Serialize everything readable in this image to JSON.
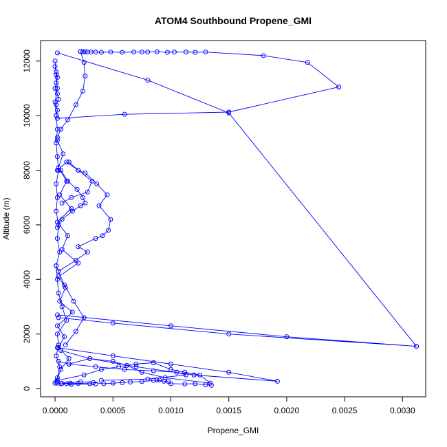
{
  "chart_data": {
    "type": "line",
    "title": "ATOM4 Southbound Propene_GMI",
    "xlabel": "Propene_GMI",
    "ylabel": "Altitude (m)",
    "xlim": [
      -0.000125,
      0.0032
    ],
    "ylim": [
      -300,
      12750
    ],
    "x_ticks": [
      0,
      0.0005,
      0.001,
      0.0015,
      0.002,
      0.0025,
      0.003
    ],
    "x_tick_labels": [
      "0.0000",
      "0.0005",
      "0.0010",
      "0.0015",
      "0.0020",
      "0.0025",
      "0.0030"
    ],
    "y_ticks": [
      0,
      2000,
      4000,
      6000,
      8000,
      10000,
      12000
    ],
    "y_tick_labels": [
      "0",
      "2000",
      "4000",
      "6000",
      "8000",
      "10000",
      "12000"
    ],
    "marker": "open-circle",
    "grid": false,
    "legend": "none",
    "color": "#0000ff",
    "series": [
      {
        "x": [
          0.0,
          2e-05,
          4e-05,
          1e-05,
          3e-05,
          2e-05,
          0.0001,
          6e-05,
          3e-05,
          2e-05,
          1e-05,
          4e-05,
          2e-05,
          3e-05,
          1e-05,
          2e-05,
          1e-05,
          3e-05,
          2e-05,
          1e-05,
          2e-05,
          1e-05,
          0.0,
          2e-05,
          1e-05,
          0.0
        ],
        "y": [
          200,
          400,
          800,
          1200,
          1600,
          2000,
          2500,
          3000,
          3500,
          4000,
          4500,
          5000,
          5500,
          6000,
          6500,
          7000,
          7500,
          8000,
          8500,
          9000,
          9500,
          10000,
          10500,
          11000,
          11500,
          12000
        ]
      },
      {
        "x": [
          1e-05,
          5e-05,
          0.00012,
          3e-05,
          8e-05,
          2e-05,
          0.00015,
          4e-05,
          9e-05,
          3e-05,
          0.0002,
          6e-05,
          0.00011,
          2e-05,
          0.00014,
          4e-05,
          0.0001,
          3e-05,
          7e-05,
          2e-05
        ],
        "y": [
          250,
          700,
          1100,
          1500,
          1900,
          2300,
          2800,
          3200,
          3700,
          4100,
          4600,
          5100,
          5600,
          6100,
          6600,
          7100,
          7600,
          8100,
          8600,
          9100
        ]
      },
      {
        "x": [
          3e-05,
          0.00018,
          0.00028,
          0.0002,
          0.00035,
          0.00041,
          0.00046,
          0.00048,
          0.00038,
          0.00045,
          0.00036,
          0.00026,
          0.0002,
          0.00012
        ],
        "y": [
          4300,
          4700,
          5000,
          5200,
          5500,
          5600,
          5800,
          6200,
          6700,
          7100,
          7500,
          7900,
          8000,
          8300
        ]
      },
      {
        "x": [
          2e-05,
          6e-05,
          0.00015,
          0.00022,
          0.00026,
          0.00024,
          0.00019,
          0.00011,
          5e-05
        ],
        "y": [
          5900,
          6200,
          6500,
          6700,
          6800,
          7000,
          7300,
          7600,
          8000
        ]
      },
      {
        "x": [
          2e-05,
          0.0001,
          0.0002,
          0.00032,
          0.00028,
          0.00014,
          6e-05
        ],
        "y": [
          8000,
          8300,
          8000,
          7600,
          7200,
          7000,
          6800
        ]
      },
      {
        "x": [
          1e-05,
          8e-05,
          0.00016,
          0.00025,
          0.00018,
          9e-05
        ],
        "y": [
          4500,
          3800,
          3200,
          2600,
          2100,
          1600
        ]
      },
      {
        "x": [
          2e-05,
          5e-05,
          0.0001,
          0.00013,
          0.0002,
          0.0003,
          0.00035,
          0.00014,
          6e-05,
          0.00022,
          0.00033,
          0.00042,
          0.0005,
          0.00058,
          0.00065,
          0.00075,
          0.00085,
          0.0009,
          0.00088,
          0.00094,
          0.00098,
          0.001,
          0.00112,
          0.00121,
          0.0013,
          0.00135
        ],
        "y": [
          200,
          180,
          180,
          200,
          190,
          180,
          170,
          160,
          190,
          250,
          220,
          180,
          200,
          220,
          240,
          260,
          300,
          320,
          320,
          270,
          260,
          180,
          170,
          180,
          140,
          120
        ]
      },
      {
        "x": [
          2e-05,
          0.00025,
          0.0004,
          0.00055,
          0.0007,
          0.00085,
          0.001,
          0.00112,
          0.00125,
          0.00134,
          0.00095,
          0.00075,
          0.00062,
          0.0005,
          0.0003,
          0.00012
        ],
        "y": [
          300,
          500,
          700,
          800,
          900,
          950,
          700,
          600,
          500,
          200,
          400,
          600,
          850,
          1000,
          1100,
          900
        ]
      },
      {
        "x": [
          3e-05,
          0.00012,
          0.00035,
          0.0006,
          0.00085,
          0.00105,
          0.00113,
          0.0008,
          0.0004
        ],
        "y": [
          1000,
          900,
          800,
          700,
          650,
          600,
          500,
          350,
          300
        ]
      },
      {
        "x": [
          2e-05,
          0.0005,
          0.001,
          0.0015,
          0.00192,
          0.0012,
          0.0007,
          0.0003,
          5e-05
        ],
        "y": [
          1500,
          1200,
          900,
          600,
          270,
          500,
          800,
          1100,
          1400
        ]
      },
      {
        "x": [
          2e-05,
          0.001,
          0.002,
          0.00312,
          0.0015,
          0.0005,
          3e-05
        ],
        "y": [
          2700,
          2300,
          1900,
          1550,
          2000,
          2400,
          2600
        ]
      },
      {
        "x": [
          2e-05,
          0.0008,
          0.0015,
          0.00312
        ],
        "y": [
          12300,
          11300,
          10100,
          1550
        ]
      },
      {
        "x": [
          2e-05,
          0.0006,
          0.0015,
          0.00245
        ],
        "y": [
          9900,
          10050,
          10130,
          11050
        ]
      },
      {
        "x": [
          0.00245,
          0.00218,
          0.0018,
          0.0013,
          0.00121,
          0.00113,
          0.00103,
          0.00097,
          0.00088,
          0.0008,
          0.00075,
          0.00068,
          0.00058,
          0.00048,
          0.0004,
          0.00035,
          0.00031,
          0.00028,
          0.00026,
          0.00024,
          0.00022
        ],
        "y": [
          11050,
          11950,
          12200,
          12330,
          12320,
          12330,
          12330,
          12320,
          12340,
          12330,
          12330,
          12330,
          12320,
          12330,
          12320,
          12330,
          12330,
          12330,
          12340,
          12340,
          12350
        ]
      },
      {
        "x": [
          0.00022,
          0.00025,
          0.00026,
          0.00024,
          0.00018,
          0.00011,
          5e-05,
          2e-05
        ],
        "y": [
          12350,
          11950,
          11450,
          10900,
          10400,
          9850,
          9500,
          9200
        ]
      },
      {
        "x": [
          0.0,
          1e-05,
          2e-05,
          1e-05,
          0.0,
          2e-05,
          3e-05,
          1e-05,
          2e-05,
          1e-05
        ],
        "y": [
          11800,
          11600,
          11400,
          11200,
          11000,
          10800,
          10600,
          10400,
          10200,
          10000
        ]
      }
    ]
  }
}
